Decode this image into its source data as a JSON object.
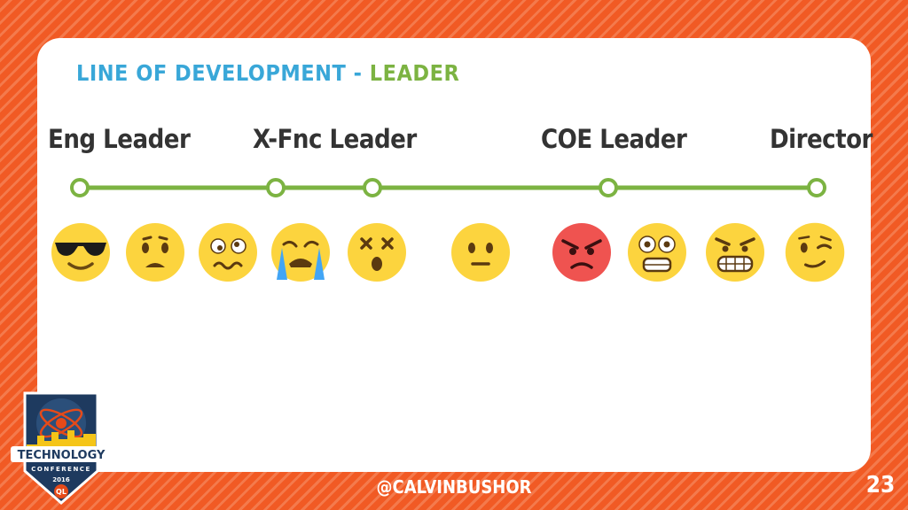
{
  "title": {
    "part1": "LINE OF DEVELOPMENT - ",
    "part2": "LEADER"
  },
  "stages": [
    "Eng Leader",
    "X-Fnc Leader",
    "COE Leader",
    "Director"
  ],
  "emojis": [
    "cool-sunglasses-face-icon",
    "frowning-face-icon",
    "confused-wavy-face-icon",
    "crying-face-icon",
    "dizzy-face-icon",
    "neutral-face-icon",
    "angry-face-icon",
    "fearful-face-icon",
    "grimacing-face-icon",
    "winking-face-icon"
  ],
  "footer": {
    "handle": "@CALVINBUSHOR",
    "slide_number": "23"
  },
  "badge": {
    "line1": "TECHNOLOGY",
    "line2": "CONFERENCE",
    "year": "2016",
    "logo": "QL"
  },
  "colors": {
    "background": "#f15a24",
    "title_blue": "#39a7d8",
    "title_green": "#7cb342",
    "timeline": "#7cb342",
    "emoji_yellow": "#fcd43e",
    "angry_red": "#ef5350"
  }
}
